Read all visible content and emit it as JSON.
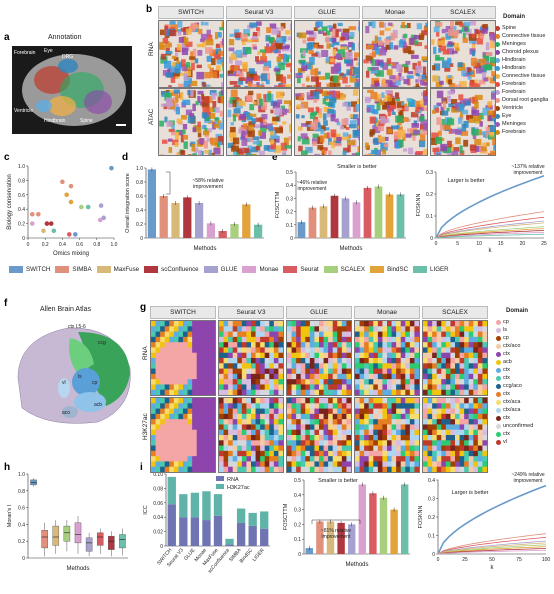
{
  "panels": {
    "a": "a",
    "b": "b",
    "c": "c",
    "d": "d",
    "e": "e",
    "f": "f",
    "g": "g",
    "h": "h",
    "i": "i",
    "j": "j"
  },
  "annotation_title": "Annotation",
  "annotation_labels": [
    "Forebrain",
    "Eye",
    "DRG",
    "Ventricle",
    "Hindbrain",
    "Spine"
  ],
  "b_columns": [
    "SWITCH",
    "Seurat V3",
    "GLUE",
    "Monae",
    "SCALEX"
  ],
  "b_rows": [
    "RNA",
    "ATAC"
  ],
  "b_legend_title": "Domain",
  "b_legend": [
    {
      "label": "Spine",
      "color": "#c0392b"
    },
    {
      "label": "Connective tissue",
      "color": "#e67e22"
    },
    {
      "label": "Meninges",
      "color": "#27ae60"
    },
    {
      "label": "Choroid plexus",
      "color": "#8e44ad"
    },
    {
      "label": "Hindbrain",
      "color": "#5dade2"
    },
    {
      "label": "Hindbrain",
      "color": "#3498db"
    },
    {
      "label": "Connective tissue",
      "color": "#f5b041"
    },
    {
      "label": "Forebrain",
      "color": "#e74c3c"
    },
    {
      "label": "Forebrain",
      "color": "#c39bd3"
    },
    {
      "label": "Dorsal root ganglia",
      "color": "#f1948a"
    },
    {
      "label": "Ventricle",
      "color": "#a04000"
    },
    {
      "label": "Eye",
      "color": "#2e86c1"
    },
    {
      "label": "Meninges",
      "color": "#9b59b6"
    },
    {
      "label": "Forebrain",
      "color": "#d68910"
    }
  ],
  "c": {
    "xlabel": "Omics mixing",
    "ylabel": "Biology conservation",
    "xticks": [
      "0",
      "0.2",
      "0.4",
      "0.6",
      "0.8",
      "1.0"
    ],
    "yticks": [
      "0",
      "0.2",
      "0.4",
      "0.6",
      "0.8",
      "1.0"
    ]
  },
  "d": {
    "ylabel": "Overall integration score",
    "xlabel": "Methods",
    "annotation": "~58% relative improvement",
    "yticks": [
      "0",
      "0.2",
      "0.4",
      "0.6",
      "0.8",
      "1.0"
    ]
  },
  "e": {
    "left_ylabel": "FOSCTTM",
    "left_xlabel": "Methods",
    "left_title": "Smaller is better",
    "left_annotation": "~46% relative improvement",
    "left_yticks": [
      "0",
      "0.1",
      "0.2",
      "0.3",
      "0.4",
      "0.5"
    ],
    "right_ylabel": "FOSKNN",
    "right_xlabel": "k",
    "right_title": "Larger is better",
    "right_annotation": "~137% relative improvement",
    "right_yticks": [
      "0",
      "0.1",
      "0.2",
      "0.3"
    ],
    "right_xticks": [
      "0",
      "5",
      "10",
      "15",
      "20",
      "25"
    ]
  },
  "methods_legend": [
    {
      "label": "SWITCH",
      "color": "#6a9ac9"
    },
    {
      "label": "SIMBA",
      "color": "#e0907b"
    },
    {
      "label": "MaxFuse",
      "color": "#d8b979"
    },
    {
      "label": "scConfluence",
      "color": "#b0373d"
    },
    {
      "label": "GLUE",
      "color": "#a6a2d0"
    },
    {
      "label": "Monae",
      "color": "#d9a0d0"
    },
    {
      "label": "Seurat",
      "color": "#d95c63"
    },
    {
      "label": "SCALEX",
      "color": "#a8cf7e"
    },
    {
      "label": "BindSC",
      "color": "#e3a33b"
    },
    {
      "label": "LIGER",
      "color": "#6cbfa9"
    }
  ],
  "f": {
    "title": "Allen Brain Atlas",
    "labels": [
      "ctx L5-6",
      "ctx L5-6",
      "ccg",
      "cp",
      "ls",
      "vl",
      "acb",
      "aco"
    ]
  },
  "g_columns": [
    "SWITCH",
    "Seurat V3",
    "GLUE",
    "Monae",
    "SCALEX"
  ],
  "g_rows": [
    "RNA",
    "H3K27ac"
  ],
  "g_legend_title": "Domain",
  "g_legend": [
    {
      "label": "cp",
      "color": "#f4a6a6"
    },
    {
      "label": "ls",
      "color": "#d7bde2"
    },
    {
      "label": "cp",
      "color": "#a04000"
    },
    {
      "label": "ctx/aco",
      "color": "#f5cba7"
    },
    {
      "label": "ctx",
      "color": "#8e44ad"
    },
    {
      "label": "acb",
      "color": "#f1c40f"
    },
    {
      "label": "ctx",
      "color": "#5dade2"
    },
    {
      "label": "ctx",
      "color": "#48c9b0"
    },
    {
      "label": "ccg/aco",
      "color": "#1f618d"
    },
    {
      "label": "ctx",
      "color": "#e67e22"
    },
    {
      "label": "ctx/aca",
      "color": "#f7dc6f"
    },
    {
      "label": "ctx/aca",
      "color": "#aed6f1"
    },
    {
      "label": "ctx",
      "color": "#7b241c"
    },
    {
      "label": "unconfirmed",
      "color": "#d5d8dc"
    },
    {
      "label": "ctx",
      "color": "#2ecc71"
    },
    {
      "label": "vl",
      "color": "#c0392b"
    }
  ],
  "h": {
    "ylabel": "Moran's I",
    "xlabel": "Methods",
    "yticks": [
      "0",
      "0.2",
      "0.4",
      "0.6",
      "0.8",
      "1.0"
    ]
  },
  "i": {
    "ylabel": "ICC",
    "legend": [
      "RNA",
      "H3K27ac"
    ],
    "yticks": [
      "0",
      "0.02",
      "0.04",
      "0.06",
      "0.08",
      "0.10"
    ],
    "categories": [
      "SWITCH",
      "Seurat V3",
      "GLUE",
      "Monae",
      "MaxFuse",
      "scConfluence",
      "SIMBA",
      "BindSC",
      "LIGER"
    ]
  },
  "j": {
    "left_ylabel": "FOSCTTM",
    "left_xlabel": "Methods",
    "left_title": "Smaller is better",
    "left_annotation": "~81% relative improvement",
    "left_yticks": [
      "0",
      "0.1",
      "0.2",
      "0.3",
      "0.4",
      "0.5"
    ],
    "right_ylabel": "FOSKNN",
    "right_xlabel": "k",
    "right_title": "Larger is better",
    "right_annotation": "~249% relative improvement",
    "right_yticks": [
      "0",
      "0.1",
      "0.2",
      "0.3",
      "0.4"
    ],
    "right_xticks": [
      "0",
      "25",
      "50",
      "75",
      "100"
    ]
  },
  "chart_data": [
    {
      "type": "scatter",
      "panel": "c",
      "xlabel": "Omics mixing",
      "ylabel": "Biology conservation",
      "xlim": [
        0,
        1
      ],
      "ylim": [
        0,
        1
      ],
      "points": [
        {
          "x": 0.97,
          "y": 0.97,
          "color": "#6a9ac9"
        },
        {
          "x": 0.05,
          "y": 0.33,
          "color": "#e0907b"
        },
        {
          "x": 0.12,
          "y": 0.33,
          "color": "#e0907b"
        },
        {
          "x": 0.22,
          "y": 0.2,
          "color": "#b0373d"
        },
        {
          "x": 0.27,
          "y": 0.2,
          "color": "#b0373d"
        },
        {
          "x": 0.4,
          "y": 0.78,
          "color": "#e0907b"
        },
        {
          "x": 0.5,
          "y": 0.72,
          "color": "#e0907b"
        },
        {
          "x": 0.45,
          "y": 0.6,
          "color": "#e3a33b"
        },
        {
          "x": 0.5,
          "y": 0.5,
          "color": "#e3a33b"
        },
        {
          "x": 0.62,
          "y": 0.43,
          "color": "#a8cf7e"
        },
        {
          "x": 0.7,
          "y": 0.43,
          "color": "#6cbfa9"
        },
        {
          "x": 0.85,
          "y": 0.45,
          "color": "#a6a2d0"
        },
        {
          "x": 0.88,
          "y": 0.28,
          "color": "#a6a2d0"
        },
        {
          "x": 0.84,
          "y": 0.25,
          "color": "#d9a0d0"
        },
        {
          "x": 0.48,
          "y": 0.05,
          "color": "#d95c63"
        },
        {
          "x": 0.55,
          "y": 0.05,
          "color": "#6a9ac9"
        },
        {
          "x": 0.05,
          "y": 0.2,
          "color": "#d9a0d0"
        },
        {
          "x": 0.18,
          "y": 0.1,
          "color": "#d8b979"
        },
        {
          "x": 0.3,
          "y": 0.1,
          "color": "#6cbfa9"
        }
      ]
    },
    {
      "type": "bar",
      "panel": "d",
      "ylabel": "Overall integration score",
      "xlabel": "Methods",
      "ylim": [
        0,
        1
      ],
      "categories": [
        "SWITCH",
        "SIMBA",
        "MaxFuse",
        "scConfluence",
        "GLUE",
        "Monae",
        "Seurat",
        "SCALEX",
        "BindSC",
        "LIGER"
      ],
      "values": [
        0.98,
        0.6,
        0.5,
        0.58,
        0.5,
        0.21,
        0.1,
        0.2,
        0.48,
        0.19
      ]
    },
    {
      "type": "bar",
      "panel": "e-left",
      "ylabel": "FOSCTTM",
      "xlabel": "Methods",
      "ylim": [
        0,
        0.5
      ],
      "categories": [
        "SWITCH",
        "SIMBA",
        "MaxFuse",
        "scConfluence",
        "GLUE",
        "Monae",
        "Seurat",
        "SCALEX",
        "BindSC",
        "LIGER"
      ],
      "values": [
        0.12,
        0.23,
        0.24,
        0.32,
        0.3,
        0.27,
        0.38,
        0.39,
        0.33,
        0.33
      ]
    },
    {
      "type": "line",
      "panel": "e-right",
      "ylabel": "FOSKNN",
      "xlabel": "k",
      "xlim": [
        0,
        25
      ],
      "ylim": [
        0,
        0.35
      ],
      "series": [
        {
          "color": "#6a9ac9",
          "y_end": 0.33
        },
        {
          "color": "#e0907b",
          "y_end": 0.14
        },
        {
          "color": "#d95c63",
          "y_end": 0.11
        },
        {
          "color": "#a6a2d0",
          "y_end": 0.09
        },
        {
          "color": "#d8b979",
          "y_end": 0.08
        },
        {
          "color": "#a8cf7e",
          "y_end": 0.06
        },
        {
          "color": "#e3a33b",
          "y_end": 0.05
        },
        {
          "color": "#b0373d",
          "y_end": 0.04
        },
        {
          "color": "#d9a0d0",
          "y_end": 0.03
        },
        {
          "color": "#6cbfa9",
          "y_end": 0.02
        }
      ]
    },
    {
      "type": "box",
      "panel": "h",
      "ylabel": "Moran's I",
      "xlabel": "Methods",
      "ylim": [
        0,
        1
      ],
      "boxes": [
        {
          "color": "#6a9ac9",
          "median": 0.9,
          "q1": 0.87,
          "q3": 0.93,
          "min": 0.85,
          "max": 0.95
        },
        {
          "color": "#e0907b",
          "median": 0.25,
          "q1": 0.12,
          "q3": 0.33,
          "min": 0.02,
          "max": 0.42
        },
        {
          "color": "#d8b979",
          "median": 0.25,
          "q1": 0.15,
          "q3": 0.38,
          "min": 0.05,
          "max": 0.45
        },
        {
          "color": "#a8cf7e",
          "median": 0.3,
          "q1": 0.2,
          "q3": 0.38,
          "min": 0.08,
          "max": 0.45
        },
        {
          "color": "#d9a0d0",
          "median": 0.28,
          "q1": 0.18,
          "q3": 0.42,
          "min": 0.05,
          "max": 0.5
        },
        {
          "color": "#a6a2d0",
          "median": 0.18,
          "q1": 0.08,
          "q3": 0.24,
          "min": 0.02,
          "max": 0.3
        },
        {
          "color": "#d95c63",
          "median": 0.25,
          "q1": 0.15,
          "q3": 0.3,
          "min": 0.05,
          "max": 0.35
        },
        {
          "color": "#b0373d",
          "median": 0.2,
          "q1": 0.1,
          "q3": 0.26,
          "min": 0.02,
          "max": 0.32
        },
        {
          "color": "#6cbfa9",
          "median": 0.22,
          "q1": 0.12,
          "q3": 0.28,
          "min": 0.03,
          "max": 0.35
        }
      ]
    },
    {
      "type": "bar",
      "panel": "i",
      "ylabel": "ICC",
      "ylim": [
        0,
        0.1
      ],
      "stacked": true,
      "categories": [
        "SWITCH",
        "Seurat V3",
        "GLUE",
        "Monae",
        "MaxFuse",
        "scConfluence",
        "SIMBA",
        "BindSC",
        "LIGER"
      ],
      "series": [
        {
          "name": "RNA",
          "color": "#6f74b3",
          "values": [
            0.058,
            0.04,
            0.04,
            0.036,
            0.042,
            0.002,
            0.032,
            0.028,
            0.024
          ]
        },
        {
          "name": "H3K27ac",
          "color": "#5fb3a8",
          "values": [
            0.038,
            0.032,
            0.034,
            0.04,
            0.03,
            0.008,
            0.02,
            0.018,
            0.024
          ]
        }
      ]
    },
    {
      "type": "bar",
      "panel": "j-left",
      "ylabel": "FOSCTTM",
      "xlabel": "Methods",
      "ylim": [
        0,
        0.5
      ],
      "categories": [
        "SWITCH",
        "SIMBA",
        "MaxFuse",
        "scConfluence",
        "GLUE",
        "Monae",
        "Seurat",
        "SCALEX",
        "BindSC",
        "LIGER"
      ],
      "values": [
        0.04,
        0.22,
        0.22,
        0.21,
        0.2,
        0.47,
        0.41,
        0.38,
        0.3,
        0.47
      ]
    },
    {
      "type": "line",
      "panel": "j-right",
      "ylabel": "FOSKNN",
      "xlabel": "k",
      "xlim": [
        0,
        100
      ],
      "ylim": [
        0,
        0.4
      ],
      "series": [
        {
          "color": "#6a9ac9",
          "y_end": 0.37
        },
        {
          "color": "#e0907b",
          "y_end": 0.11
        },
        {
          "color": "#d95c63",
          "y_end": 0.09
        },
        {
          "color": "#a6a2d0",
          "y_end": 0.07
        },
        {
          "color": "#d8b979",
          "y_end": 0.06
        },
        {
          "color": "#a8cf7e",
          "y_end": 0.05
        },
        {
          "color": "#e3a33b",
          "y_end": 0.04
        },
        {
          "color": "#b0373d",
          "y_end": 0.03
        },
        {
          "color": "#d9a0d0",
          "y_end": 0.02
        }
      ]
    }
  ]
}
